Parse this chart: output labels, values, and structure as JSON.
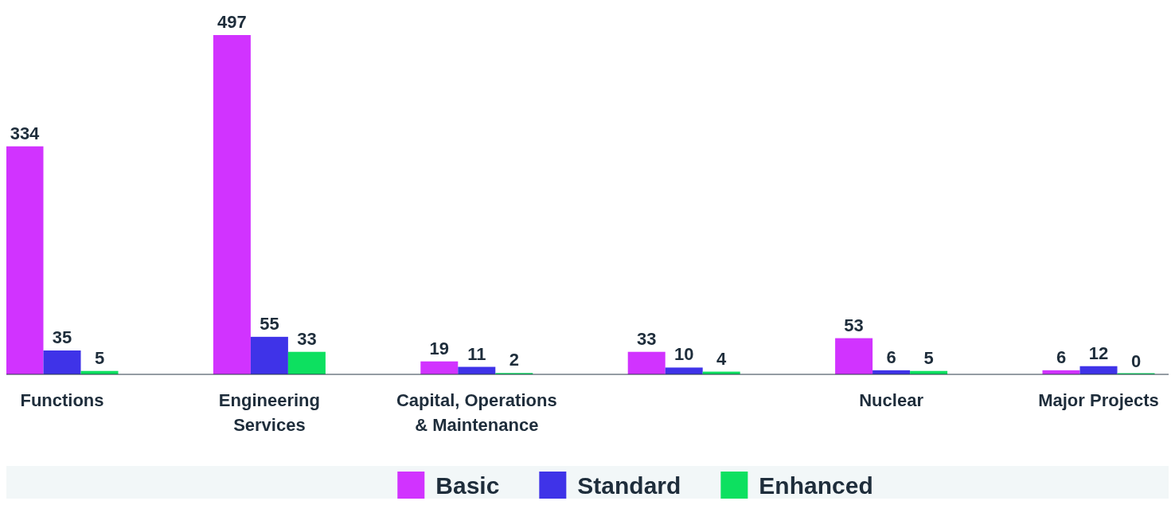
{
  "chart_data": {
    "type": "bar",
    "categories": [
      "Functions",
      "Engineering Services",
      "Capital, Operations & Maintenance",
      null,
      "Nuclear",
      "Major Projects"
    ],
    "series": [
      {
        "name": "Basic",
        "color": "#d133ff",
        "values": [
          334,
          497,
          19,
          33,
          53,
          6
        ]
      },
      {
        "name": "Standard",
        "color": "#3f33e8",
        "values": [
          35,
          55,
          11,
          10,
          6,
          12
        ]
      },
      {
        "name": "Enhanced",
        "color": "#0de060",
        "values": [
          5,
          33,
          2,
          4,
          5,
          0
        ]
      }
    ],
    "data_labels": true,
    "legend": "bottom"
  }
}
